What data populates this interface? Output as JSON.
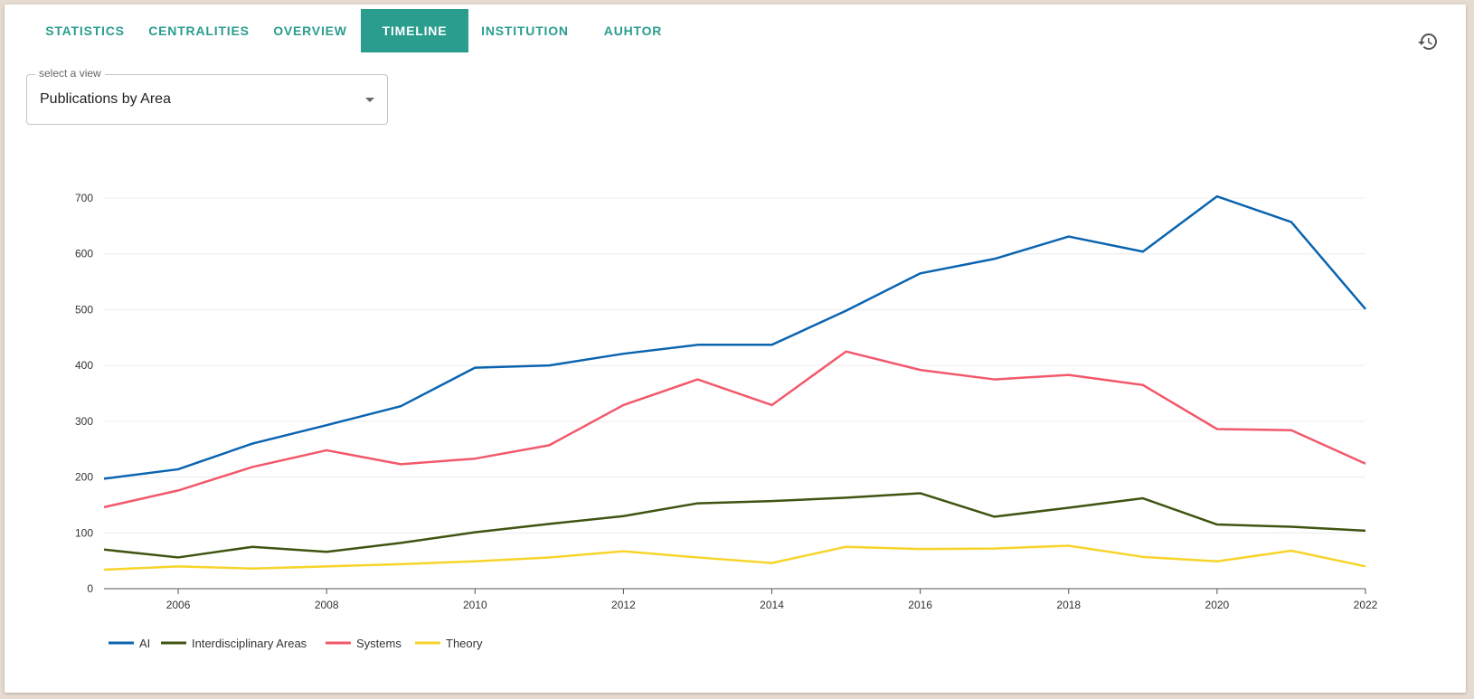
{
  "tabs": [
    {
      "label": "STATISTICS",
      "active": false
    },
    {
      "label": "CENTRALITIES",
      "active": false
    },
    {
      "label": "OVERVIEW",
      "active": false
    },
    {
      "label": "TIMELINE",
      "active": true
    },
    {
      "label": "INSTITUTION",
      "active": false
    },
    {
      "label": "AUHTOR",
      "active": false
    }
  ],
  "view_select": {
    "legend": "select a view",
    "value": "Publications by Area"
  },
  "icons": {
    "refresh": "refresh-history-icon",
    "dropdown": "chevron-down-icon"
  },
  "colors": {
    "accent": "#2a9d8f",
    "AI": "#0a64b0",
    "Interdisciplinary Areas": "#3f5411",
    "Systems": "#f2596b",
    "Theory": "#f7d42a"
  },
  "chart_data": {
    "type": "line",
    "x": [
      2005,
      2006,
      2007,
      2008,
      2009,
      2010,
      2011,
      2012,
      2013,
      2014,
      2015,
      2016,
      2017,
      2018,
      2019,
      2020,
      2021,
      2022
    ],
    "xticks": [
      "2006",
      "2008",
      "2010",
      "2012",
      "2014",
      "2016",
      "2018",
      "2020",
      "2022"
    ],
    "yticks": [
      "0",
      "100",
      "200",
      "300",
      "400",
      "500",
      "600",
      "700"
    ],
    "xlim": [
      2005,
      2022
    ],
    "ylim": [
      0,
      700
    ],
    "grid": "horizontal",
    "legend_position": "bottom-left",
    "series": [
      {
        "name": "AI",
        "color": "#0a64b0",
        "values": [
          197,
          214,
          260,
          293,
          327,
          396,
          400,
          421,
          437,
          437,
          498,
          565,
          591,
          631,
          604,
          703,
          657,
          501
        ]
      },
      {
        "name": "Interdisciplinary Areas",
        "color": "#3f5411",
        "values": [
          70,
          56,
          75,
          66,
          82,
          101,
          116,
          130,
          153,
          157,
          163,
          171,
          129,
          145,
          162,
          115,
          111,
          104
        ]
      },
      {
        "name": "Systems",
        "color": "#f2596b",
        "values": [
          146,
          176,
          218,
          248,
          223,
          233,
          257,
          329,
          375,
          329,
          425,
          392,
          375,
          383,
          365,
          286,
          284,
          224
        ]
      },
      {
        "name": "Theory",
        "color": "#f7d42a",
        "values": [
          34,
          40,
          36,
          40,
          44,
          49,
          56,
          67,
          56,
          46,
          75,
          71,
          72,
          77,
          57,
          49,
          68,
          40
        ]
      }
    ]
  }
}
